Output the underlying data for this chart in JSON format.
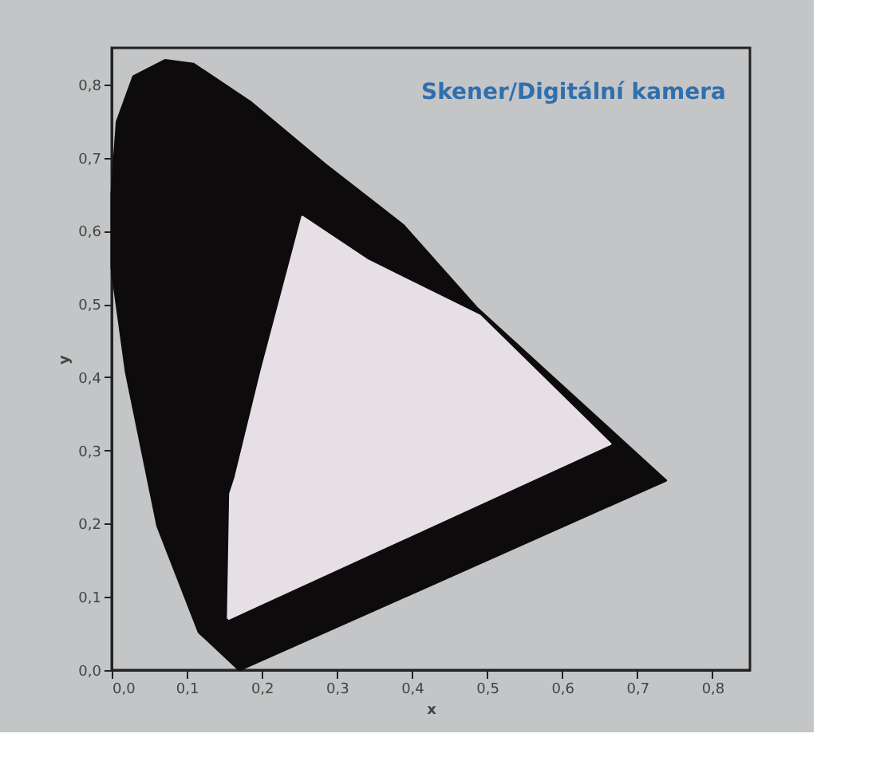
{
  "chart_data": {
    "type": "area",
    "xlabel": "x",
    "ylabel": "y",
    "annotations": [
      "Skener/Digitální kamera"
    ],
    "xlim": [
      0,
      0.85
    ],
    "ylim": [
      0,
      0.85
    ],
    "xticks": [
      {
        "value": 0,
        "label": "0,0"
      },
      {
        "value": 0.1,
        "label": "0,1"
      },
      {
        "value": 0.2,
        "label": "0,2"
      },
      {
        "value": 0.3,
        "label": "0,3"
      },
      {
        "value": 0.4,
        "label": "0,4"
      },
      {
        "value": 0.5,
        "label": "0,5"
      },
      {
        "value": 0.6,
        "label": "0,6"
      },
      {
        "value": 0.7,
        "label": "0,7"
      },
      {
        "value": 0.8,
        "label": "0,8"
      }
    ],
    "yticks": [
      {
        "value": 0,
        "label": "0,0"
      },
      {
        "value": 0.1,
        "label": "0,1"
      },
      {
        "value": 0.2,
        "label": "0,2"
      },
      {
        "value": 0.3,
        "label": "0,3"
      },
      {
        "value": 0.4,
        "label": "0,4"
      },
      {
        "value": 0.5,
        "label": "0,5"
      },
      {
        "value": 0.6,
        "label": "0,6"
      },
      {
        "value": 0.7,
        "label": "0,7"
      },
      {
        "value": 0.8,
        "label": "0,8"
      }
    ],
    "grid": false,
    "series": [
      {
        "color": "#0d0b0b",
        "x": [
          0.17,
          0.116,
          0.061,
          0.019,
          0.0,
          0.0,
          0.007,
          0.029,
          0.071,
          0.109,
          0.186,
          0.284,
          0.388,
          0.486,
          0.738,
          0.17
        ],
        "values": [
          0.0,
          0.052,
          0.197,
          0.408,
          0.55,
          0.65,
          0.749,
          0.811,
          0.833,
          0.828,
          0.775,
          0.691,
          0.608,
          0.495,
          0.259,
          0.0
        ]
      },
      {
        "color": "#e6e0e6",
        "x": [
          0.155,
          0.158,
          0.165,
          0.2,
          0.254,
          0.34,
          0.49,
          0.664,
          0.155
        ],
        "values": [
          0.07,
          0.241,
          0.263,
          0.41,
          0.619,
          0.56,
          0.484,
          0.309,
          0.07
        ]
      }
    ]
  }
}
